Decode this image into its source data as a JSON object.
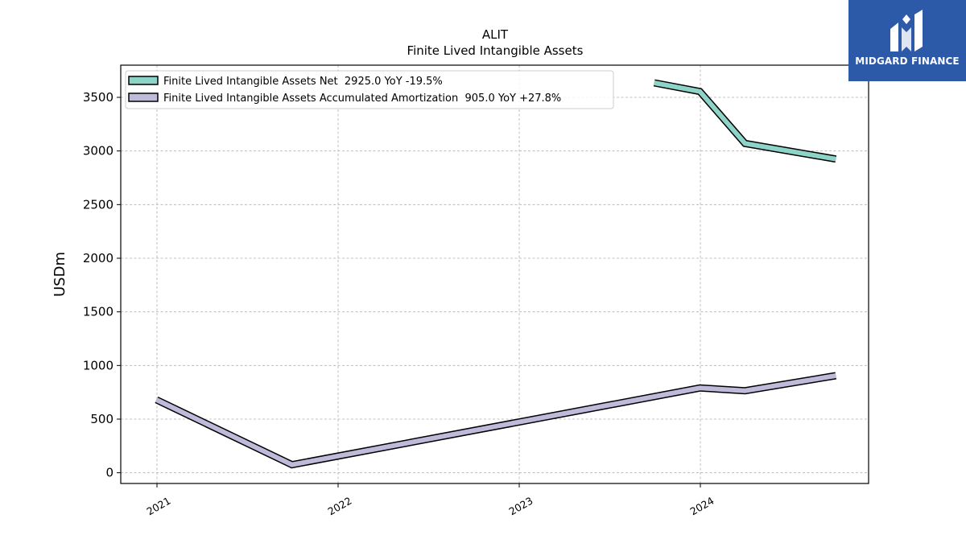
{
  "chart_data": {
    "type": "line",
    "title": "ALIT",
    "subtitle": "Finite Lived Intangible Assets",
    "xlabel": "",
    "ylabel": "USDm",
    "xlim": [
      "2020-10-20",
      "2024-12-05"
    ],
    "ylim": [
      -100,
      3800
    ],
    "x_ticks": [
      "2021",
      "2022",
      "2023",
      "2024"
    ],
    "y_ticks": [
      0,
      500,
      1000,
      1500,
      2000,
      2500,
      3000,
      3500
    ],
    "grid": true,
    "legend_position": "top-left",
    "series": [
      {
        "name": "Finite Lived Intangible Assets Net  2925.0 YoY -19.5%",
        "color": "#8dd3c7",
        "points": [
          {
            "x": "2023-09-30",
            "y": 3635
          },
          {
            "x": "2023-12-31",
            "y": 3555
          },
          {
            "x": "2024-03-31",
            "y": 3070
          },
          {
            "x": "2024-09-30",
            "y": 2925
          }
        ]
      },
      {
        "name": "Finite Lived Intangible Assets Accumulated Amortization  905.0 YoY +27.8%",
        "color": "#bebada",
        "points": [
          {
            "x": "2020-12-31",
            "y": 680
          },
          {
            "x": "2021-09-30",
            "y": 75
          },
          {
            "x": "2023-12-31",
            "y": 790
          },
          {
            "x": "2024-03-31",
            "y": 765
          },
          {
            "x": "2024-09-30",
            "y": 905
          }
        ]
      }
    ]
  },
  "logo": {
    "text": "MIDGARD FINANCE",
    "background": "#2c5aa8",
    "icon": "midgard-m-logo-icon"
  }
}
